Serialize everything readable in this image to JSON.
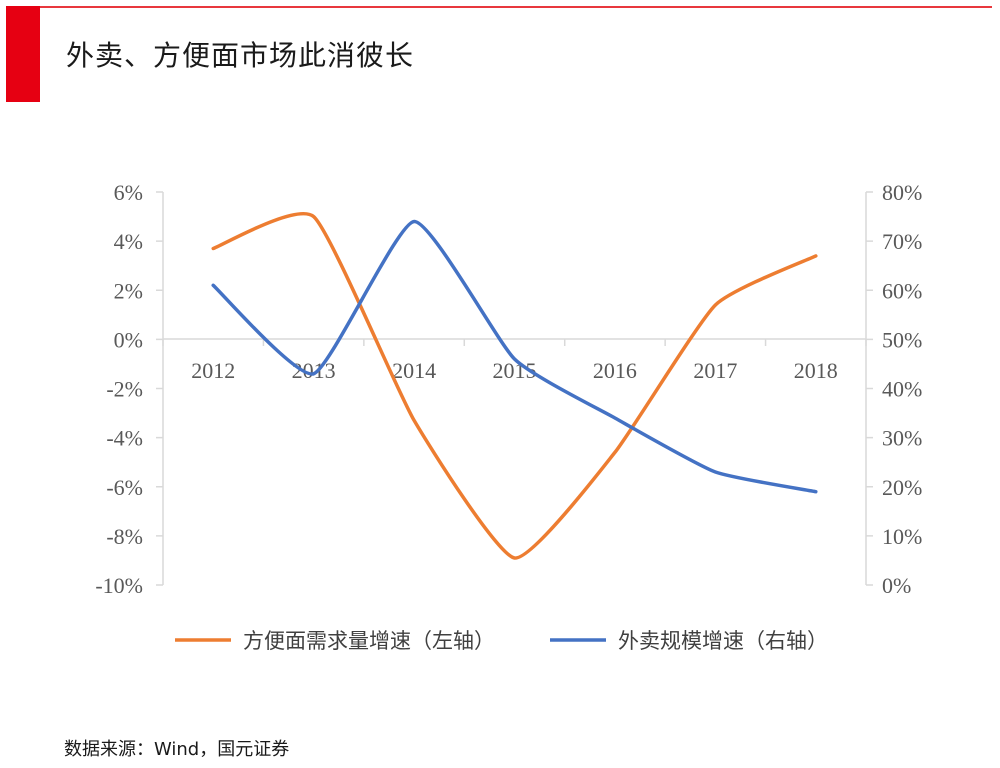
{
  "header": {
    "title": "外卖、方便面市场此消彼长",
    "accent_color": "#e60012"
  },
  "source": "数据来源：Wind，国元证券",
  "chart_data": {
    "type": "line",
    "title": "外卖、方便面市场此消彼长",
    "categories": [
      "2012",
      "2013",
      "2014",
      "2015",
      "2016",
      "2017",
      "2018"
    ],
    "y_left": {
      "min": -10,
      "max": 6,
      "step": 2,
      "tick_labels": [
        "6%",
        "4%",
        "2%",
        "0%",
        "-2%",
        "-4%",
        "-6%",
        "-8%",
        "-10%"
      ]
    },
    "y_right": {
      "min": 0,
      "max": 80,
      "step": 10,
      "tick_labels": [
        "80%",
        "70%",
        "60%",
        "50%",
        "40%",
        "30%",
        "20%",
        "10%",
        "0%"
      ]
    },
    "series": [
      {
        "name": "方便面需求量增速（左轴）",
        "axis": "left",
        "color": "#ed7d31",
        "values": [
          3.7,
          5.0,
          -3.3,
          -8.9,
          -4.6,
          1.4,
          3.4
        ]
      },
      {
        "name": "外卖规模增速（右轴）",
        "axis": "right",
        "color": "#4472c4",
        "values": [
          61,
          43,
          74,
          46,
          34,
          23,
          19
        ]
      }
    ],
    "legend_position": "bottom",
    "grid": false
  }
}
